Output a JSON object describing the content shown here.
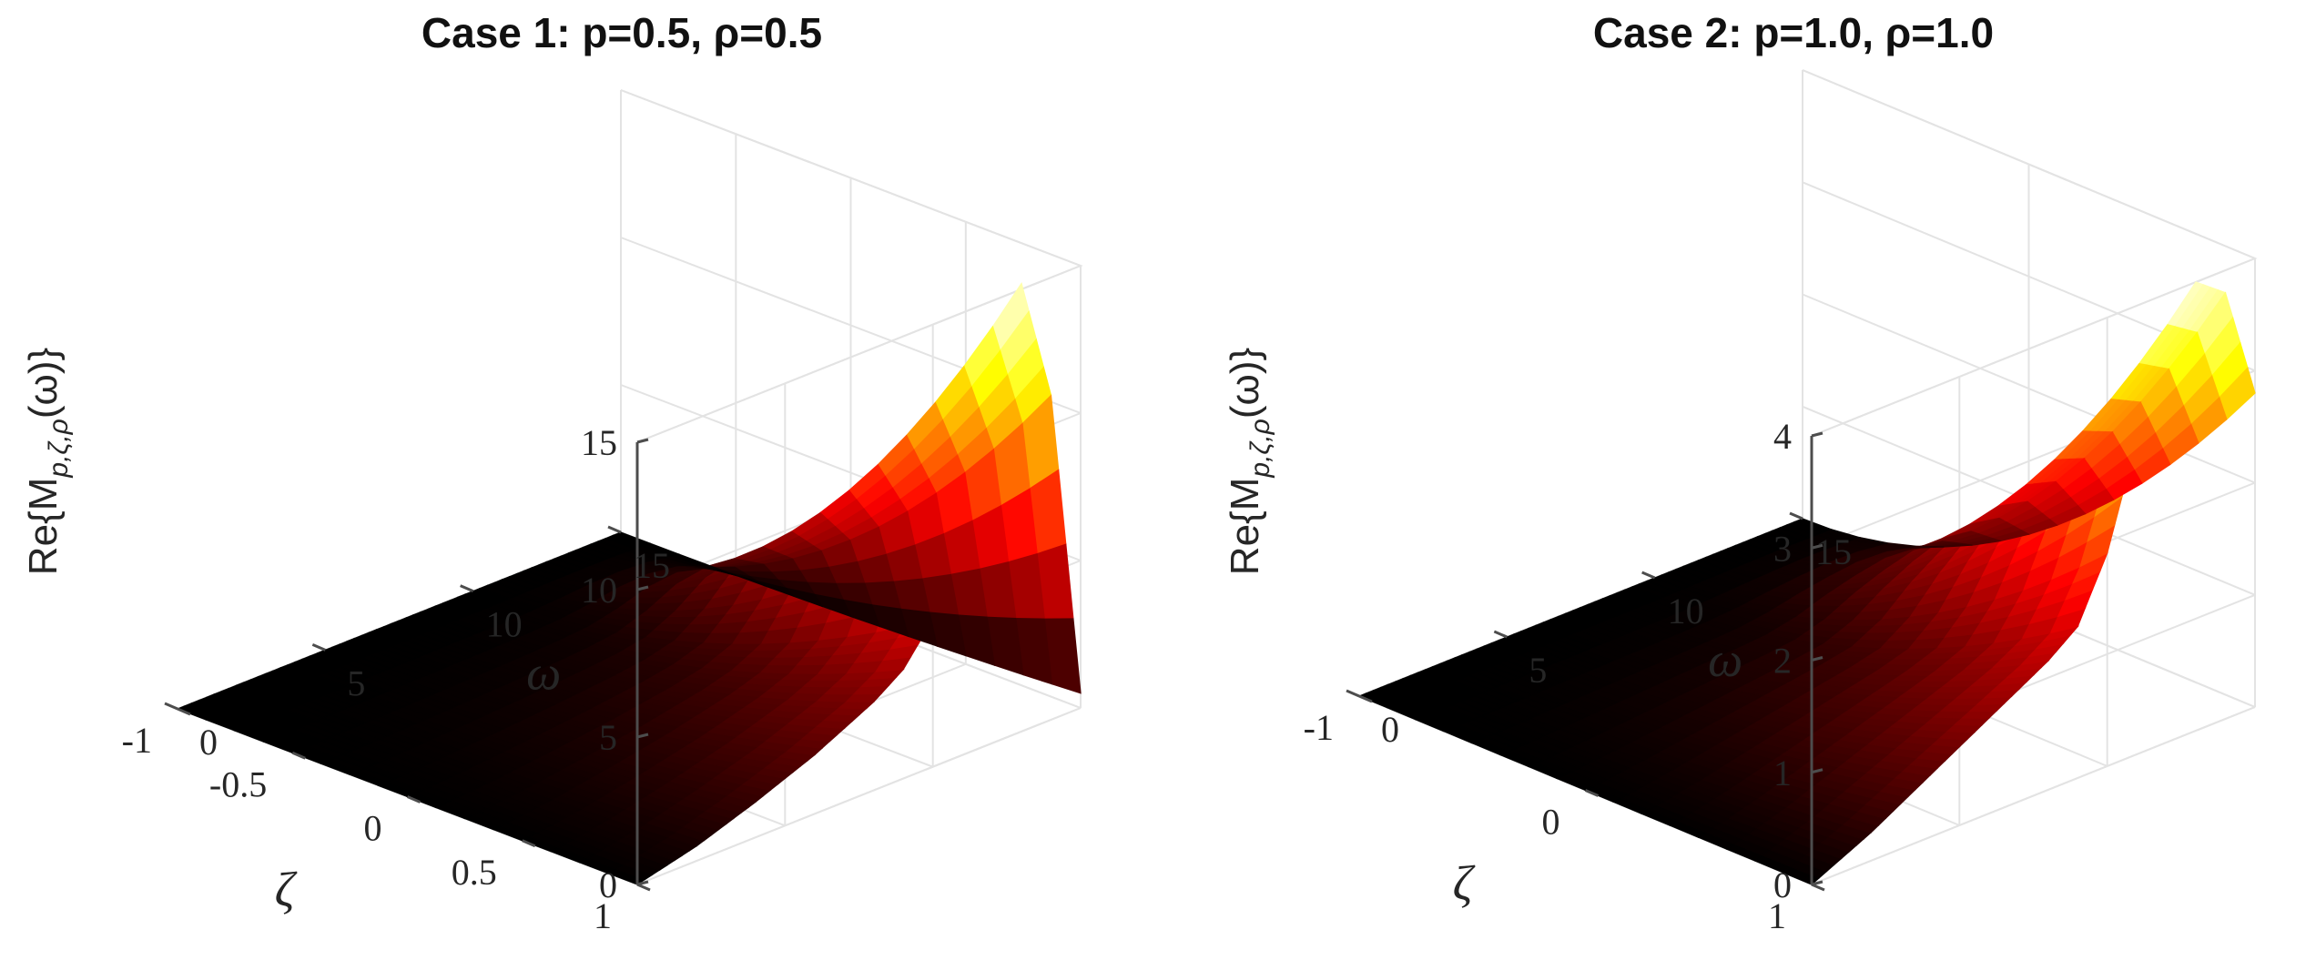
{
  "colors": {
    "colormap": "hot",
    "colormap_stops": [
      "#000000",
      "#ff0000",
      "#ffff00",
      "#ffffff"
    ],
    "grid": "#e3e3e3",
    "axis": "#4d4d4d"
  },
  "chart_data": [
    {
      "type": "surface",
      "title": "Case  1:  p=0.5,  ρ=0.5",
      "xlabel": "ω",
      "ylabel": "ζ",
      "zlabel": "Re{M",
      "zlabel_sub": "p,ζ,ρ",
      "zlabel_tail": "(ω)}",
      "xlim": [
        0,
        15
      ],
      "ylim": [
        -1,
        1
      ],
      "zlim": [
        0,
        15
      ],
      "xticks": [
        "0",
        "5",
        "10",
        "15"
      ],
      "yticks": [
        "-1",
        "-0.5",
        "0",
        "0.5",
        "1"
      ],
      "zticks": [
        "0",
        "5",
        "10",
        "15"
      ],
      "grid": true,
      "colormap": "hot",
      "surface": {
        "omega": [
          0,
          2,
          4,
          6,
          8,
          9,
          10,
          11,
          12,
          13,
          14,
          15
        ],
        "values_at_zeta_1": [
          0.0,
          0.5,
          1.2,
          2.0,
          3.0,
          3.7,
          5.0,
          8.5,
          13.5,
          15.2,
          11.0,
          0.5
        ],
        "values_at_zeta_minus_1": [
          0,
          0,
          0,
          0,
          0,
          0,
          0,
          0,
          0,
          0,
          0,
          0
        ]
      }
    },
    {
      "type": "surface",
      "title": "Case  2:  p=1.0,  ρ=1.0",
      "xlabel": "ω",
      "ylabel": "ζ",
      "zlabel": "Re{M",
      "zlabel_sub": "p,ζ,ρ",
      "zlabel_tail": "(ω)}",
      "xlim": [
        0,
        15
      ],
      "ylim": [
        -1,
        1
      ],
      "zlim": [
        0,
        4
      ],
      "xticks": [
        "0",
        "5",
        "10",
        "15"
      ],
      "yticks": [
        "-1",
        "0",
        "1"
      ],
      "zticks": [
        "0",
        "1",
        "2",
        "3",
        "4"
      ],
      "grid": true,
      "colormap": "hot",
      "surface": {
        "omega": [
          0,
          2,
          4,
          6,
          8,
          9,
          10,
          11,
          12,
          13,
          14,
          15
        ],
        "values_at_zeta_1": [
          0.0,
          0.25,
          0.55,
          0.85,
          1.15,
          1.35,
          1.9,
          2.8,
          3.5,
          4.0,
          3.8,
          2.8
        ],
        "values_at_zeta_minus_1": [
          0,
          0,
          0,
          0,
          0,
          0,
          0,
          0,
          0,
          0,
          0,
          0
        ]
      }
    }
  ]
}
